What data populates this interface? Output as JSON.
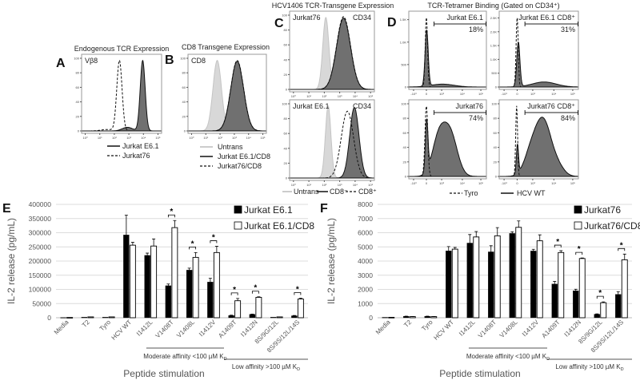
{
  "panel_labels": {
    "A": "A",
    "B": "B",
    "C": "C",
    "D": "D",
    "E": "E",
    "F": "F"
  },
  "titles": {
    "A": "Endogenous TCR Expression",
    "B": "CD8 Transgene Expression",
    "C": "HCV1406 TCR-Transgene Expression",
    "D": "TCR-Tetramer Binding (Gated on CD34⁺)"
  },
  "flow_ticks": {
    "x_log": [
      "10⁰",
      "10¹",
      "10²",
      "10³",
      "10⁴",
      "10⁵"
    ],
    "x_biex": [
      "-10³",
      "0",
      "10³",
      "10⁴",
      "10⁵"
    ],
    "y_pct": [
      "0",
      "20",
      "40",
      "60",
      "80",
      "100"
    ],
    "y_d1": [
      "0",
      "500",
      "1.0K",
      "1.5K"
    ],
    "y_d2": [
      "0",
      "500",
      "1.0K",
      "1.5K",
      "2.0K",
      "2.5K"
    ]
  },
  "flow_plots": [
    {
      "id": "A",
      "marker": "Vβ8",
      "marker2": "",
      "curves": [
        {
          "name": "Jurkat E6.1",
          "style": "dark",
          "comps": [
            [
              3.95,
              0.17,
              0.97
            ],
            [
              2.9,
              0.35,
              0.05
            ]
          ]
        },
        {
          "name": "Jurkat76",
          "style": "dash",
          "comps": [
            [
              2.35,
              0.18,
              0.97
            ],
            [
              1.5,
              0.4,
              0.02
            ]
          ]
        }
      ]
    },
    {
      "id": "B",
      "marker": "CD8",
      "marker2": "",
      "curves": [
        {
          "name": "Untrans",
          "style": "light",
          "comps": [
            [
              1.8,
              0.3,
              0.97
            ]
          ]
        },
        {
          "name": "Jurkat E6.1/CD8",
          "style": "dark",
          "comps": [
            [
              3.2,
              0.45,
              0.96
            ]
          ]
        },
        {
          "name": "Jurkat76/CD8",
          "style": "dash",
          "comps": [
            [
              3.2,
              0.45,
              0.97
            ]
          ]
        }
      ]
    },
    {
      "id": "C1",
      "marker": "Jurkat76",
      "marker2": "CD34",
      "curves": [
        {
          "name": "Untrans",
          "style": "light",
          "comps": [
            [
              2.1,
              0.2,
              0.97
            ]
          ]
        },
        {
          "name": "CD8-",
          "style": "dark",
          "comps": [
            [
              3.25,
              0.45,
              0.96
            ]
          ]
        },
        {
          "name": "CD8+",
          "style": "dash",
          "comps": [
            [
              3.25,
              0.45,
              0.98
            ]
          ]
        }
      ]
    },
    {
      "id": "C2",
      "marker": "Jurkat E6.1",
      "marker2": "CD34",
      "curves": [
        {
          "name": "Untrans",
          "style": "light",
          "comps": [
            [
              2.25,
              0.18,
              0.97
            ]
          ]
        },
        {
          "name": "CD8-",
          "style": "dark",
          "comps": [
            [
              3.95,
              0.3,
              0.95
            ]
          ]
        },
        {
          "name": "CD8+",
          "style": "dash",
          "comps": [
            [
              3.5,
              0.4,
              0.9
            ]
          ]
        }
      ]
    },
    {
      "id": "D1",
      "marker": "Jurkat E6.1",
      "marker2": "18%",
      "yticks": "y_d1",
      "curves": [
        {
          "name": "HCV WT",
          "style": "dark",
          "comps": [
            [
              1.38,
              0.12,
              0.78
            ],
            [
              2.6,
              0.9,
              0.04
            ]
          ]
        },
        {
          "name": "Tyro",
          "style": "dash",
          "comps": [
            [
              1.36,
              0.09,
              0.97
            ]
          ]
        }
      ]
    },
    {
      "id": "D2",
      "marker": "Jurkat E6.1 CD8⁺",
      "marker2": "31%",
      "yticks": "y_d2",
      "curves": [
        {
          "name": "HCV WT",
          "style": "dark",
          "comps": [
            [
              1.45,
              0.12,
              0.62
            ],
            [
              3.4,
              0.9,
              0.07
            ]
          ]
        },
        {
          "name": "Tyro",
          "style": "dash",
          "comps": [
            [
              1.36,
              0.08,
              0.97
            ]
          ]
        }
      ]
    },
    {
      "id": "D3",
      "marker": "Jurkat76",
      "marker2": "74%",
      "yticks": "y_pct",
      "curves": [
        {
          "name": "HCV WT",
          "style": "dark",
          "comps": [
            [
              1.38,
              0.1,
              0.7
            ],
            [
              2.3,
              0.5,
              0.5
            ],
            [
              3.2,
              0.55,
              0.58
            ]
          ]
        },
        {
          "name": "Tyro",
          "style": "dash",
          "comps": [
            [
              1.36,
              0.11,
              0.97
            ]
          ]
        }
      ]
    },
    {
      "id": "D4",
      "marker": "Jurkat76 CD8⁺",
      "marker2": "84%",
      "yticks": "y_pct",
      "curves": [
        {
          "name": "HCV WT",
          "style": "dark",
          "comps": [
            [
              1.38,
              0.08,
              0.4
            ],
            [
              2.5,
              0.55,
              0.38
            ],
            [
              3.4,
              0.55,
              0.68
            ],
            [
              4.4,
              0.5,
              0.14
            ]
          ]
        },
        {
          "name": "Tyro",
          "style": "dash",
          "comps": [
            [
              1.32,
              0.07,
              0.97
            ]
          ]
        }
      ]
    }
  ],
  "legends": {
    "A": [
      "Jurkat E6.1",
      "Jurkat76"
    ],
    "B": [
      "Untrans",
      "Jurkat E6.1/CD8",
      "Jurkat76/CD8"
    ],
    "C": [
      "Untrans",
      "CD8⁻",
      "CD8⁺"
    ],
    "D": [
      "Tyro",
      "HCV WT"
    ]
  },
  "chart_data": [
    {
      "type": "bar",
      "panel": "E",
      "ylabel": "IL-2 release (pg/mL)",
      "xlabel": "Peptide stimulation",
      "ylim": [
        0,
        400000
      ],
      "ytick_step": 50000,
      "grid": true,
      "legend": "top-right",
      "yticks": [
        "0",
        "50000",
        "100000",
        "150000",
        "200000",
        "250000",
        "300000",
        "350000",
        "400000"
      ],
      "categories": [
        "Media",
        "T2",
        "Tyro",
        "HCV WT",
        "I1412L",
        "V1408T",
        "V1408L",
        "I1412V",
        "A1409T",
        "I1412N",
        "8S/9G/12L",
        "8S/9S/12L/14S"
      ],
      "series": [
        {
          "name": "Jurkat E6.1",
          "color": "#000000",
          "values": [
            1000,
            2000,
            2000,
            292000,
            220000,
            113000,
            168000,
            126000,
            8000,
            12000,
            2000,
            7000
          ],
          "errors": [
            0,
            0,
            0,
            70000,
            8000,
            6000,
            7000,
            13000,
            1000,
            1000,
            0,
            1000
          ]
        },
        {
          "name": "Jurkat E6.1/CD8",
          "color": "#ffffff",
          "values": [
            1000,
            3000,
            3000,
            256000,
            253000,
            318000,
            213000,
            230000,
            60000,
            72000,
            3000,
            66000
          ],
          "errors": [
            0,
            0,
            0,
            10000,
            25000,
            25000,
            17000,
            22000,
            8000,
            2000,
            0,
            3000
          ]
        }
      ],
      "significant": [
        "V1408T",
        "V1408L",
        "I1412V",
        "A1409T",
        "I1412N",
        "8S/9S/12L/14S"
      ],
      "star": "*",
      "groups": {
        "moderate": "Moderate affinity <100 µM K",
        "low": "Low affinity >100 µM K",
        "sub": "D"
      }
    },
    {
      "type": "bar",
      "panel": "F",
      "ylabel": "IL-2 release (pg/mL)",
      "xlabel": "Peptide stimulation",
      "ylim": [
        0,
        8000
      ],
      "ytick_step": 1000,
      "grid": true,
      "legend": "top-right",
      "yticks": [
        "0",
        "1000",
        "2000",
        "3000",
        "4000",
        "5000",
        "6000",
        "7000",
        "8000"
      ],
      "categories": [
        "Media",
        "T2",
        "Tyro",
        "HCV WT",
        "I1412L",
        "V1408T",
        "V1408L",
        "I1412V",
        "A1409T",
        "I1412N",
        "8S/9G/12L",
        "8S/9S/12L/14S"
      ],
      "series": [
        {
          "name": "Jurkat76",
          "color": "#000000",
          "values": [
            30,
            100,
            100,
            4720,
            5270,
            4650,
            5950,
            4710,
            2380,
            1900,
            250,
            1650
          ],
          "errors": [
            0,
            10,
            10,
            300,
            600,
            430,
            120,
            120,
            180,
            110,
            20,
            180
          ]
        },
        {
          "name": "Jurkat76/CD8",
          "color": "#ffffff",
          "values": [
            30,
            80,
            80,
            4840,
            5700,
            5780,
            6380,
            5430,
            4600,
            4180,
            1060,
            4090
          ],
          "errors": [
            0,
            10,
            10,
            120,
            380,
            580,
            450,
            420,
            130,
            40,
            60,
            400
          ]
        }
      ],
      "significant": [
        "A1409T",
        "I1412N",
        "8S/9G/12L",
        "8S/9S/12L/14S"
      ],
      "star": "*",
      "groups": {
        "moderate": "Moderate affinity <100 µM K",
        "low": "Low affinity >100 µM K",
        "sub": "D"
      }
    }
  ]
}
